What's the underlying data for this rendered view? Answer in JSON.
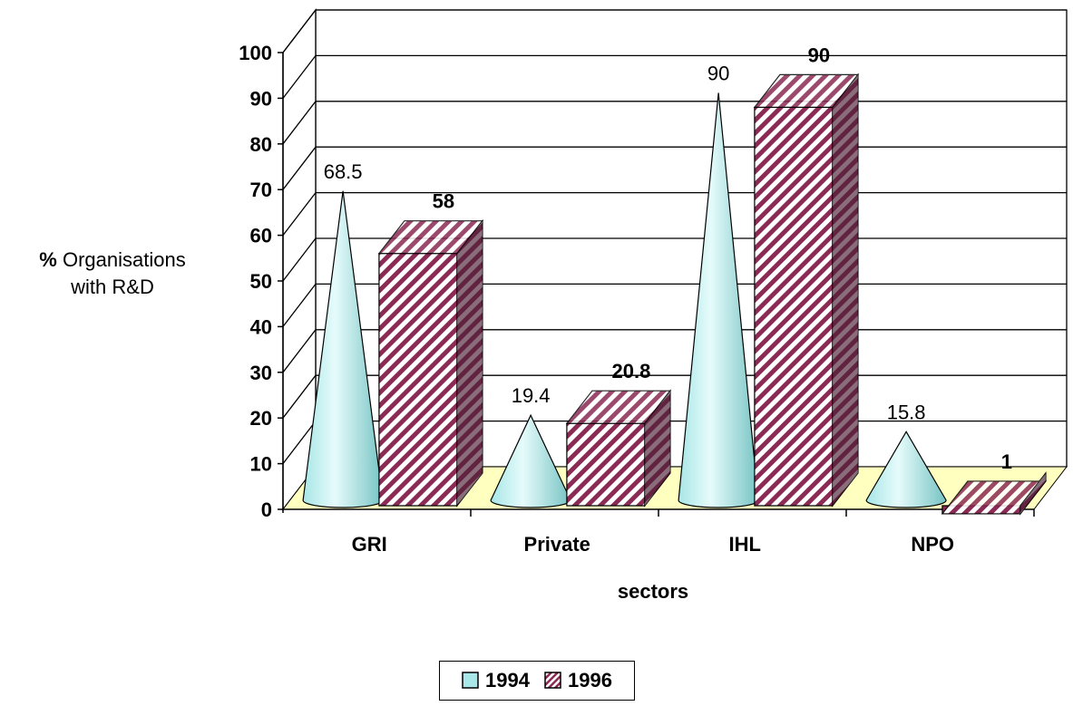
{
  "chart_data": {
    "type": "bar",
    "categories": [
      "GRI",
      "Private",
      "IHL",
      "NPO"
    ],
    "series": [
      {
        "name": "1994",
        "values": [
          68.5,
          19.4,
          90,
          15.8
        ],
        "shape": "cone",
        "color": "#a8e8e8"
      },
      {
        "name": "1996",
        "values": [
          58,
          20.8,
          90,
          1
        ],
        "shape": "box",
        "pattern": "diagonal-stripes",
        "color": "#8b2a55"
      }
    ],
    "data_labels": [
      [
        "68.5",
        "19.4",
        "90",
        "15.8"
      ],
      [
        "58",
        "20.8",
        "90",
        "1"
      ]
    ],
    "xlabel": "sectors",
    "ylabel_bold": "%",
    "ylabel_line1": "Organisations",
    "ylabel_line2": "with R&D",
    "ylim": [
      0,
      100
    ],
    "yticks": [
      "0",
      "10",
      "20",
      "30",
      "40",
      "50",
      "60",
      "70",
      "80",
      "90",
      "100"
    ],
    "grid": true,
    "legend_position": "bottom",
    "floor_color": "#ffffc0",
    "style": "3d"
  }
}
